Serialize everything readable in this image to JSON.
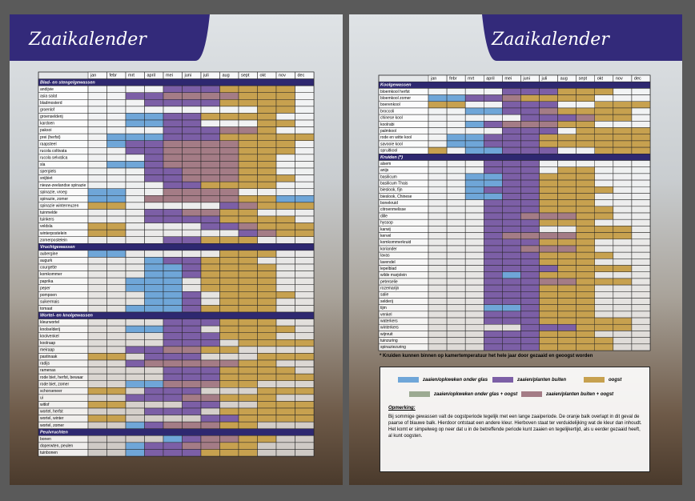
{
  "pages": [
    {
      "title": "Zaaikalender",
      "months": [
        "jan",
        "febr",
        "mrt",
        "april",
        "mei",
        "juni",
        "juli",
        "aug",
        "sept",
        "okt",
        "nov",
        "dec"
      ],
      "sections": [
        {
          "title": "Blad- en stengelgewassen",
          "rows": [
            [
              "andijvie",
              "000022233330"
            ],
            [
              "asia salat",
              "002255553330"
            ],
            [
              "bladmosterd",
              "000222233330"
            ],
            [
              "groenlof",
              "000000000330"
            ],
            [
              "groenselderij",
              "001122333300"
            ],
            [
              "kardoen",
              "001122000330"
            ],
            [
              "paksoi",
              "000022255300"
            ],
            [
              "prei (herfst)",
              "011122233333"
            ],
            [
              "raapsteel",
              "012255553330"
            ],
            [
              "rucola coltivata",
              "002255553330"
            ],
            [
              "rucola selvatica",
              "000255553300"
            ],
            [
              "sla",
              "011255553300"
            ],
            [
              "spergiels",
              "000225553300"
            ],
            [
              "snijbiet",
              "000225553330"
            ],
            [
              "nieuw-zeelandse spinazie",
              "000022333300"
            ],
            [
              "spinazie, vroeg",
              "110055550000"
            ],
            [
              "spinazie, zomer",
              "110555553311"
            ],
            [
              "spinazie winterreuzen",
              "330000025333"
            ],
            [
              "tuinmelde",
              "000225533000"
            ],
            [
              "tuinkers",
              "000222233330"
            ],
            [
              "veldsla",
              "330000225333"
            ],
            [
              "winterpostelein",
              "330000002533"
            ],
            [
              "zomerpostelein",
              "000022333000"
            ]
          ]
        },
        {
          "title": "Vruchtgewassen",
          "rows": [
            [
              "aubergine",
              "110000033300"
            ],
            [
              "augurk",
              "000122333000"
            ],
            [
              "courgette",
              "000112333300"
            ],
            [
              "komkommer",
              "000112333300"
            ],
            [
              "paprika",
              "001110333300"
            ],
            [
              "peper",
              "001110333300"
            ],
            [
              "pompoen",
              "000112033330"
            ],
            [
              "suikermais",
              "000112033300"
            ],
            [
              "tomaat",
              "001112333300"
            ]
          ]
        },
        {
          "title": "Wortel- en knolgewassen",
          "rows": [
            [
              "kleurwortel",
              "000022233300"
            ],
            [
              "knolselderij",
              "001122033330"
            ],
            [
              "knolvenkel",
              "000022233300"
            ],
            [
              "koolraap",
              "000022203333"
            ],
            [
              "meiraap",
              "002255330000"
            ],
            [
              "pastinaak",
              "330222000333"
            ],
            [
              "radijs",
              "002555553300"
            ],
            [
              "ramenas",
              "000022233330"
            ],
            [
              "rode biet, herfst, bewaar",
              "000022233333"
            ],
            [
              "rode biet, zomer",
              "001155533000"
            ],
            [
              "schorseneer",
              "330222000333"
            ],
            [
              "ui",
              "002225533300"
            ],
            [
              "witlof",
              "330002200333"
            ],
            [
              "wortel, herfst",
              "000222033333"
            ],
            [
              "wortel, winter",
              "330000223333"
            ],
            [
              "wortel, zomer",
              "001255533000"
            ]
          ]
        },
        {
          "title": "Peulvruchten",
          "rows": [
            [
              "bonen",
              "000012553300"
            ],
            [
              "doperwten, peulen",
              "001225533000"
            ],
            [
              "tuinbonen",
              "001222333000"
            ]
          ]
        }
      ]
    },
    {
      "title": "Zaaikalender",
      "months": [
        "jan",
        "febr",
        "mrt",
        "april",
        "mei",
        "juni",
        "juli",
        "aug",
        "sept",
        "okt",
        "nov",
        "dec"
      ],
      "sections": [
        {
          "title": "Koolgewassen",
          "rows": [
            [
              "bloemkool herfst",
              "000022233300"
            ],
            [
              "bloemkool zomer",
              "112253333000"
            ],
            [
              "boerenkool",
              "330022200333"
            ],
            [
              "broccoli",
              "001122533330"
            ],
            [
              "chinese kool",
              "000002225330"
            ],
            [
              "koolrabi",
              "001255533000"
            ],
            [
              "palmkool",
              "000022203333"
            ],
            [
              "rode en witte kool",
              "011222333333"
            ],
            [
              "savooie kool",
              "011222333333"
            ],
            [
              "spruitkool",
              "301122200333"
            ]
          ]
        },
        {
          "title": "Kruiden (*)",
          "rows": [
            [
              "alsem",
              "000222000000"
            ],
            [
              "anijs",
              "000222033000"
            ],
            [
              "basilicum",
              "001122333000"
            ],
            [
              "basilicum Thais",
              "001122333000"
            ],
            [
              "bieslook, fijn",
              "001222333300"
            ],
            [
              "bieslook, Chinese",
              "001122333000"
            ],
            [
              "bonekruid",
              "000222333000"
            ],
            [
              "citroenmelisse",
              "000222333300"
            ],
            [
              "dille",
              "000225553300"
            ],
            [
              "hyssop",
              "000222333000"
            ],
            [
              "karwij",
              "000222003330"
            ],
            [
              "kervel",
              "000255553330"
            ],
            [
              "komkommerkruid",
              "000222333000"
            ],
            [
              "koriander",
              "000225553000"
            ],
            [
              "lavas",
              "000222333300"
            ],
            [
              "lavendel",
              "000222333000"
            ],
            [
              "lepelblad",
              "000222233330"
            ],
            [
              "wilde marjolein",
              "000212333000"
            ],
            [
              "peterselie",
              "000222553330"
            ],
            [
              "rozemarijn",
              "000222333000"
            ],
            [
              "salie",
              "000222333000"
            ],
            [
              "selderij",
              "000222333000"
            ],
            [
              "tijm",
              "000112333000"
            ],
            [
              "venkel",
              "000222333000"
            ],
            [
              "waterkers",
              "000222333330"
            ],
            [
              "winterkers",
              "000002223330"
            ],
            [
              "wijnruit",
              "000222333000"
            ],
            [
              "tuinzuring",
              "000222333300"
            ],
            [
              "spinaziezuring",
              "000222333300"
            ]
          ]
        }
      ],
      "footnote": "* Kruiden kunnen binnen op kamertemperatuur het hele jaar door gezaaid en geoogst worden",
      "legend": [
        {
          "label": "zaaien/opkweken onder glas",
          "color": "#6fa6d8"
        },
        {
          "label": "zaaien/planten buiten",
          "color": "#7c5fa6"
        },
        {
          "label": "oogst",
          "color": "#c7a14f"
        },
        {
          "label": "zaaien/opkweken onder glas + oogst",
          "color": "#9caa92"
        },
        {
          "label": "zaaien/planten buiten + oogst",
          "color": "#a47c86"
        }
      ],
      "note_title": "Opmerking:",
      "note": "Bij sommige gewassen valt de oogstperiode tegelijk met een lange zaaiperiode. De oranje balk overlapt in dit geval de paarse of blauwe balk. Hierdoor ontstaat een andere kleur. Hierboven staat ter verduidelijking wat de kleur dan inhoudt. Het komt er simpelweg op neer dat u in de betreffende periode kunt zaaien en tegelijkertijd, als u eerder gezaaid heeft, al kunt oogsten."
    }
  ]
}
